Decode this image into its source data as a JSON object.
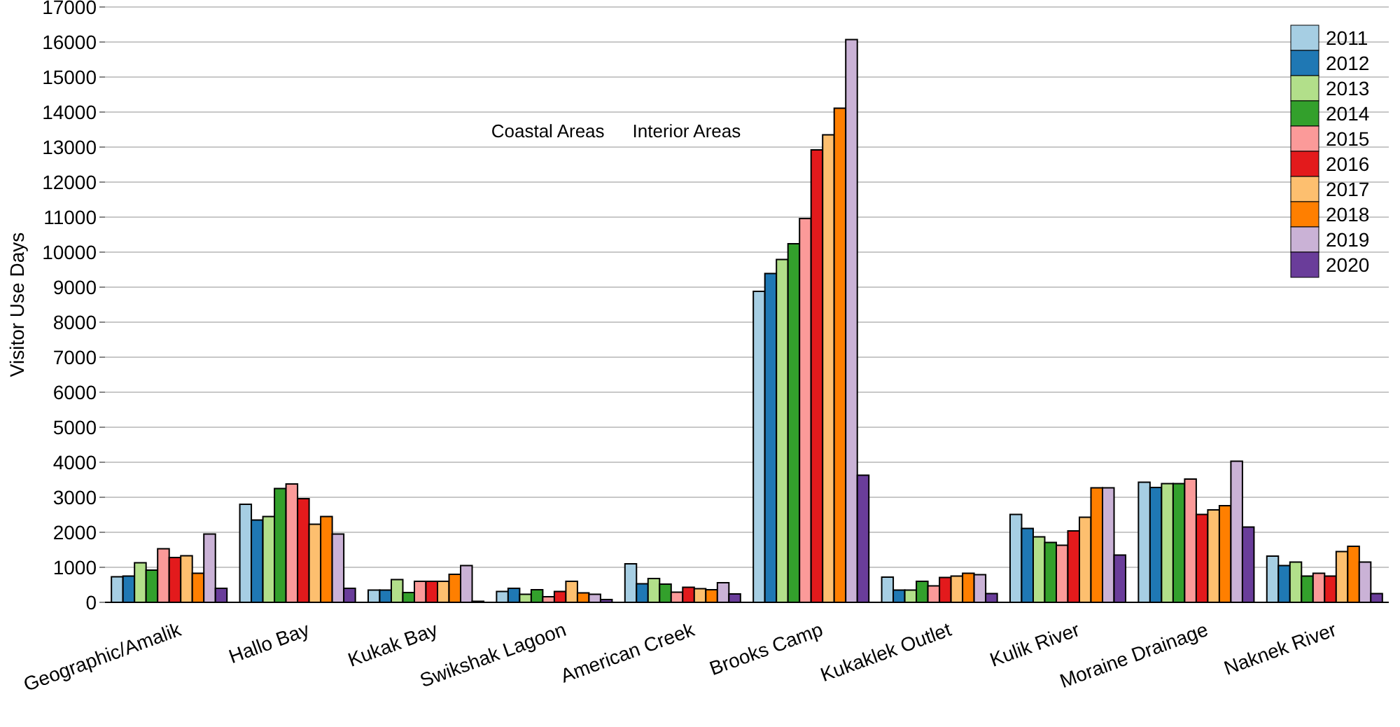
{
  "chart_data": {
    "type": "bar",
    "ylabel": "Visitor Use Days",
    "annotations": [
      "Coastal Areas",
      "Interior Areas"
    ],
    "categories": [
      "Geographic/Amalik",
      "Hallo Bay",
      "Kukak Bay",
      "Swikshak Lagoon",
      "American Creek",
      "Brooks Camp",
      "Kukaklek Outlet",
      "Kulik River",
      "Moraine Drainage",
      "Naknek River"
    ],
    "series": [
      {
        "name": "2011",
        "color": "#a6cee3",
        "values": [
          730,
          2800,
          350,
          310,
          1100,
          8880,
          720,
          2510,
          3430,
          1320
        ]
      },
      {
        "name": "2012",
        "color": "#1f78b4",
        "values": [
          750,
          2350,
          350,
          400,
          530,
          9390,
          350,
          2110,
          3280,
          1050
        ]
      },
      {
        "name": "2013",
        "color": "#b2df8a",
        "values": [
          1130,
          2450,
          650,
          230,
          680,
          9790,
          350,
          1870,
          3390,
          1150
        ]
      },
      {
        "name": "2014",
        "color": "#33a02c",
        "values": [
          920,
          3250,
          280,
          360,
          520,
          10240,
          600,
          1710,
          3390,
          750
        ]
      },
      {
        "name": "2015",
        "color": "#fb9a99",
        "values": [
          1530,
          3380,
          600,
          160,
          290,
          10960,
          470,
          1630,
          3520,
          830
        ]
      },
      {
        "name": "2016",
        "color": "#e31a1c",
        "values": [
          1280,
          2960,
          600,
          310,
          430,
          12920,
          710,
          2040,
          2510,
          750
        ]
      },
      {
        "name": "2017",
        "color": "#fdbf6f",
        "values": [
          1330,
          2230,
          600,
          600,
          390,
          13350,
          750,
          2430,
          2640,
          1450
        ]
      },
      {
        "name": "2018",
        "color": "#ff7f00",
        "values": [
          830,
          2450,
          800,
          270,
          360,
          14110,
          830,
          3270,
          2760,
          1600
        ]
      },
      {
        "name": "2019",
        "color": "#cab2d6",
        "values": [
          1950,
          1950,
          1050,
          230,
          560,
          16070,
          790,
          3270,
          4030,
          1150
        ]
      },
      {
        "name": "2020",
        "color": "#6a3d9a",
        "values": [
          400,
          400,
          30,
          80,
          240,
          3630,
          250,
          1350,
          2150,
          250
        ]
      }
    ],
    "ylim": [
      0,
      17000
    ],
    "yticks": [
      0,
      1000,
      2000,
      3000,
      4000,
      5000,
      6000,
      7000,
      8000,
      9000,
      10000,
      11000,
      12000,
      13000,
      14000,
      15000,
      16000,
      17000
    ],
    "grid": "y",
    "legend": "top right"
  }
}
